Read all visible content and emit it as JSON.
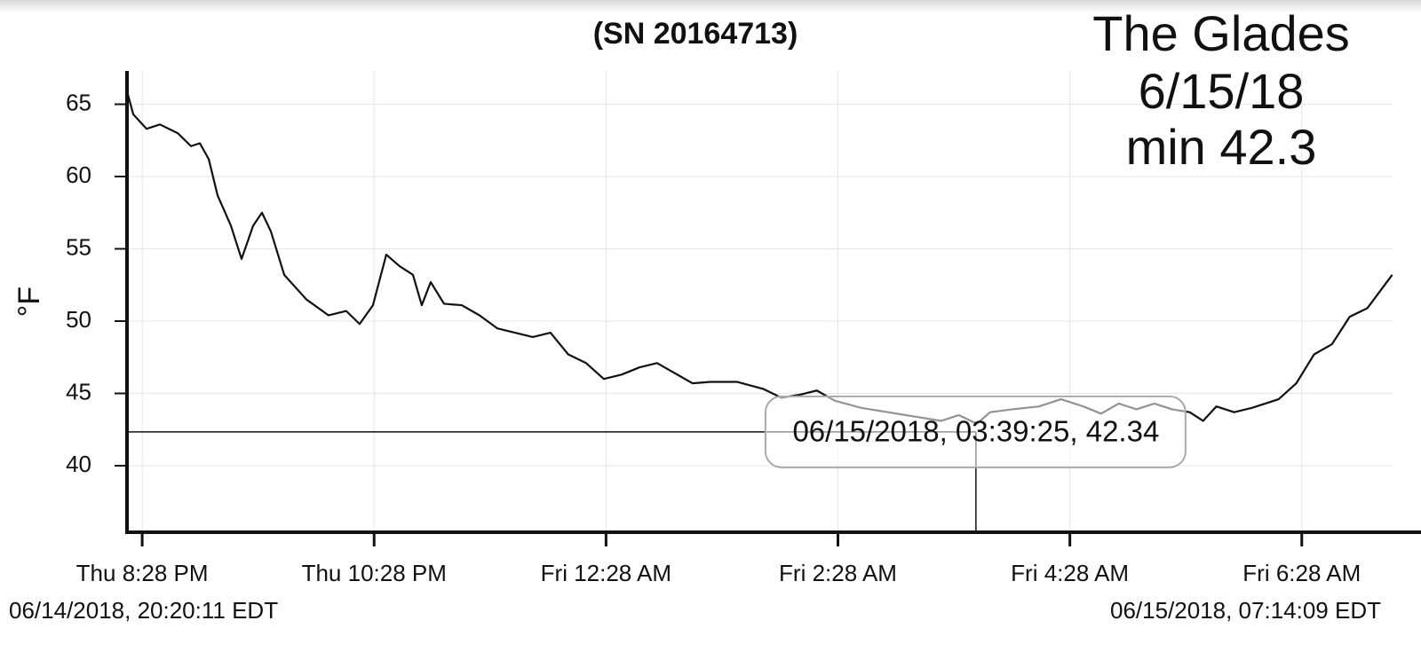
{
  "chart_data": {
    "type": "line",
    "title": "(SN 20164713)",
    "ylabel": "°F",
    "annotation": [
      "The Glades",
      "6/15/18",
      "min 42.3"
    ],
    "start_label": "06/14/2018, 20:20:11 EDT",
    "end_label": "06/15/2018, 07:14:09 EDT",
    "x": [
      20.336,
      20.39,
      20.505,
      20.62,
      20.773,
      20.888,
      20.964,
      21.041,
      21.117,
      21.232,
      21.324,
      21.424,
      21.5,
      21.577,
      21.692,
      21.883,
      22.074,
      22.227,
      22.342,
      22.457,
      22.572,
      22.687,
      22.802,
      22.878,
      22.955,
      23.07,
      23.223,
      23.376,
      23.529,
      23.682,
      23.835,
      23.988,
      24.141,
      24.295,
      24.448,
      24.601,
      24.754,
      24.907,
      25.06,
      25.213,
      25.367,
      25.596,
      25.826,
      25.979,
      26.132,
      26.285,
      26.439,
      26.668,
      26.898,
      27.128,
      27.357,
      27.511,
      27.664,
      27.779,
      27.97,
      28.2,
      28.391,
      28.583,
      28.736,
      28.889,
      29.042,
      29.195,
      29.348,
      29.501,
      29.616,
      29.731,
      29.884,
      30.037,
      30.267,
      30.42,
      30.573,
      30.727,
      30.88,
      31.033,
      31.247
    ],
    "series": [
      {
        "color": "#111111",
        "values": [
          65.9,
          64.3,
          63.3,
          63.6,
          63.0,
          62.1,
          62.3,
          61.2,
          58.7,
          56.6,
          54.3,
          56.6,
          57.5,
          56.2,
          53.2,
          51.5,
          50.4,
          50.7,
          49.8,
          51.1,
          54.6,
          53.8,
          53.2,
          51.1,
          52.7,
          51.2,
          51.1,
          50.4,
          49.5,
          49.2,
          48.9,
          49.2,
          47.7,
          47.1,
          46.0,
          46.3,
          46.8,
          47.1,
          46.4,
          45.7,
          45.8,
          45.8,
          45.3,
          44.7,
          44.9,
          45.2,
          44.5,
          44.0,
          43.7,
          43.4,
          43.1,
          43.5,
          42.9,
          43.7,
          43.9,
          44.1,
          44.6,
          44.1,
          43.6,
          44.3,
          43.9,
          44.3,
          43.9,
          43.7,
          43.1,
          44.1,
          43.7,
          44.0,
          44.6,
          45.7,
          47.7,
          48.4,
          50.3,
          50.9,
          53.2
        ]
      }
    ],
    "xlim": [
      20.336,
      31.25
    ],
    "xticks": [
      {
        "value": 20.467,
        "label": "Thu 8:28 PM"
      },
      {
        "value": 22.467,
        "label": "Thu 10:28 PM"
      },
      {
        "value": 24.467,
        "label": "Fri 12:28 AM"
      },
      {
        "value": 26.467,
        "label": "Fri 2:28 AM"
      },
      {
        "value": 28.467,
        "label": "Fri 4:28 AM"
      },
      {
        "value": 30.467,
        "label": "Fri 6:28 AM"
      }
    ],
    "ylim": [
      35.4,
      67.3
    ],
    "yticks": [
      40,
      45,
      50,
      55,
      60,
      65
    ],
    "grid": true,
    "cursor": {
      "x": 27.657,
      "y": 42.34,
      "label": "06/15/2018, 03:39:25, 42.34"
    }
  }
}
